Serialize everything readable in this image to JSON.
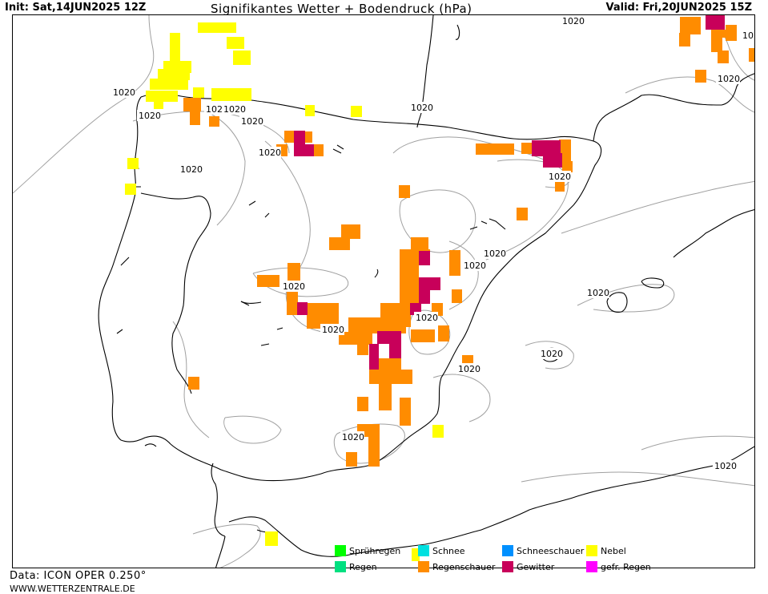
{
  "header": {
    "init": "Init: Sat,14JUN2025 12Z",
    "title": "Signifikantes Wetter +  Bodendruck (hPa)",
    "valid": "Valid: Fri,20JUN2025 15Z"
  },
  "footer": {
    "source": "Data: ICON OPER 0.250°",
    "site": "WWW.WETTERZENTRALE.DE"
  },
  "isobar_label": "1020",
  "isobar_label_cut": "102",
  "isobar_label_cut2": "10",
  "colors": {
    "spruehregen": "#00ff00",
    "regen": "#00e080",
    "schnee": "#00e0e0",
    "regenschauer": "#ff8c00",
    "schneeschauer": "#0090ff",
    "gewitter": "#c8005a",
    "nebel": "#ffff00",
    "gefr_regen": "#ff00ff",
    "coast": "#000000",
    "isobar": "#a0a0a0"
  },
  "legend": [
    {
      "label": "Sprühregen",
      "color": "#00ff00"
    },
    {
      "label": "Regen",
      "color": "#00e080"
    },
    {
      "label": "Schnee",
      "color": "#00e0e0"
    },
    {
      "label": "Regenschauer",
      "color": "#ff8c00"
    },
    {
      "label": "Schneeschauer",
      "color": "#0090ff"
    },
    {
      "label": "Gewitter",
      "color": "#c8005a"
    },
    {
      "label": "Nebel",
      "color": "#ffff00"
    },
    {
      "label": "gefr. Regen",
      "color": "#ff00ff"
    }
  ]
}
